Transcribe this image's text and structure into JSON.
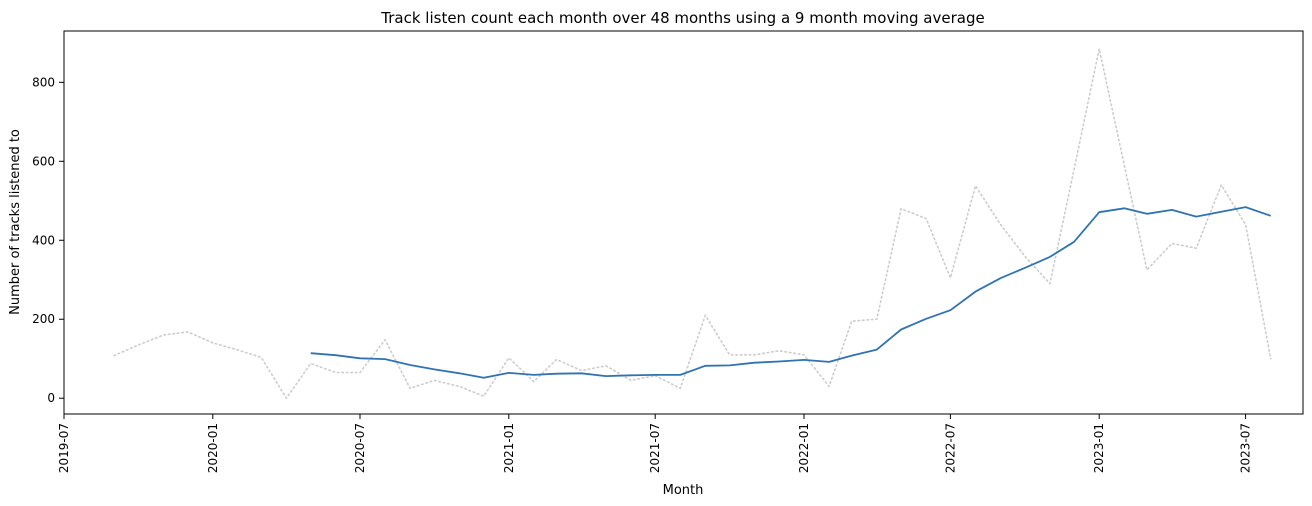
{
  "chart_data": {
    "type": "line",
    "title": "Track listen count each month over 48 months using a 9 month moving average",
    "xlabel": "Month",
    "ylabel": "Number of tracks listened to",
    "x_ticks": [
      "2019-07",
      "2020-01",
      "2020-07",
      "2021-01",
      "2021-07",
      "2022-01",
      "2022-07",
      "2023-01",
      "2023-07"
    ],
    "y_ticks": [
      0,
      200,
      400,
      600,
      800
    ],
    "xlim": [
      "2019-07-01",
      "2023-09-10"
    ],
    "ylim": [
      -40,
      930
    ],
    "grid": false,
    "series": [
      {
        "role": "raw",
        "style": "dotted",
        "color": "#cccccc",
        "x": [
          "2019-09-01",
          "2019-10-01",
          "2019-11-01",
          "2019-12-01",
          "2020-01-01",
          "2020-02-01",
          "2020-03-01",
          "2020-04-01",
          "2020-05-01",
          "2020-06-01",
          "2020-07-01",
          "2020-08-01",
          "2020-09-01",
          "2020-10-01",
          "2020-11-01",
          "2020-12-01",
          "2021-01-01",
          "2021-02-01",
          "2021-03-01",
          "2021-04-01",
          "2021-05-01",
          "2021-06-01",
          "2021-07-01",
          "2021-08-01",
          "2021-09-01",
          "2021-10-01",
          "2021-11-01",
          "2021-12-01",
          "2022-01-01",
          "2022-02-01",
          "2022-03-01",
          "2022-04-01",
          "2022-05-01",
          "2022-06-01",
          "2022-07-01",
          "2022-08-01",
          "2022-09-01",
          "2022-10-01",
          "2022-11-01",
          "2022-12-01",
          "2023-01-01",
          "2023-02-01",
          "2023-03-01",
          "2023-04-01",
          "2023-05-01",
          "2023-06-01",
          "2023-07-01",
          "2023-08-01"
        ],
        "values": [
          108,
          135,
          160,
          168,
          140,
          122,
          103,
          0,
          88,
          65,
          65,
          148,
          25,
          45,
          30,
          5,
          102,
          42,
          98,
          70,
          82,
          45,
          57,
          25,
          210,
          110,
          110,
          120,
          110,
          30,
          195,
          200,
          480,
          455,
          305,
          538,
          440,
          360,
          290,
          580,
          885,
          590,
          325,
          392,
          380,
          540,
          440,
          100
        ]
      },
      {
        "role": "moving-average",
        "style": "solid",
        "color": "#2f73b3",
        "x": [
          "2020-05-01",
          "2020-06-01",
          "2020-07-01",
          "2020-08-01",
          "2020-09-01",
          "2020-10-01",
          "2020-11-01",
          "2020-12-01",
          "2021-01-01",
          "2021-02-01",
          "2021-03-01",
          "2021-04-01",
          "2021-05-01",
          "2021-06-01",
          "2021-07-01",
          "2021-08-01",
          "2021-09-01",
          "2021-10-01",
          "2021-11-01",
          "2021-12-01",
          "2022-01-01",
          "2022-02-01",
          "2022-03-01",
          "2022-04-01",
          "2022-05-01",
          "2022-06-01",
          "2022-07-01",
          "2022-08-01",
          "2022-09-01",
          "2022-10-01",
          "2022-11-01",
          "2022-12-01",
          "2023-01-01",
          "2023-02-01",
          "2023-03-01",
          "2023-04-01",
          "2023-05-01",
          "2023-06-01",
          "2023-07-01",
          "2023-08-01"
        ],
        "values": [
          114,
          109,
          101,
          99,
          84,
          73,
          63,
          52,
          64,
          59,
          62,
          63,
          56,
          58,
          59,
          59,
          82,
          83,
          90,
          93,
          97,
          92,
          108,
          123,
          174,
          201,
          223,
          270,
          304,
          330,
          358,
          396,
          471,
          481,
          467,
          477,
          460,
          472,
          484,
          462
        ]
      }
    ]
  }
}
